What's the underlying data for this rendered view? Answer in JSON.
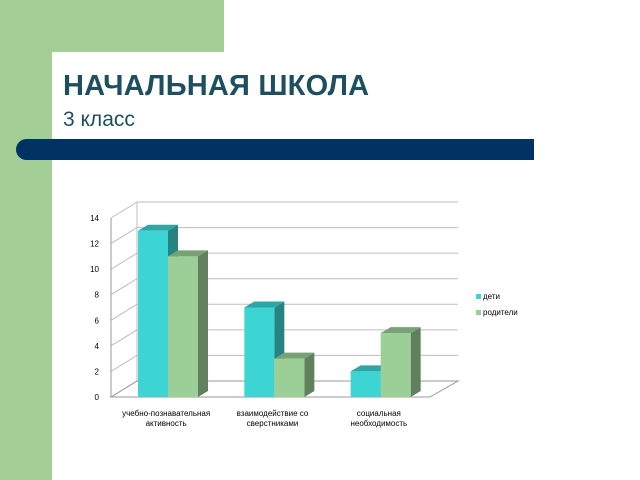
{
  "slide": {
    "title": "НАЧАЛЬНАЯ ШКОЛА",
    "subtitle": "3 класс"
  },
  "colors": {
    "background_green": "#a3cf97",
    "title": "#1d4f5f",
    "bar_navy": "#003263",
    "series_children": "#3dd4d4",
    "series_parents": "#9bcf97"
  },
  "chart_data": {
    "type": "bar",
    "categories": [
      [
        "учебно-познавательная",
        "активность"
      ],
      [
        "взаимодействие со",
        "сверстниками"
      ],
      [
        "социальная",
        "необходимость"
      ]
    ],
    "series": [
      {
        "name": "дети",
        "values": [
          13,
          7,
          2
        ],
        "color": "#3dd4d4"
      },
      {
        "name": "родители",
        "values": [
          11,
          3,
          5
        ],
        "color": "#9bcf97"
      }
    ],
    "yticks": [
      0,
      2,
      4,
      6,
      8,
      10,
      12,
      14
    ],
    "ylim": [
      0,
      14
    ],
    "grid": true,
    "legend": "right",
    "style": "3d"
  }
}
